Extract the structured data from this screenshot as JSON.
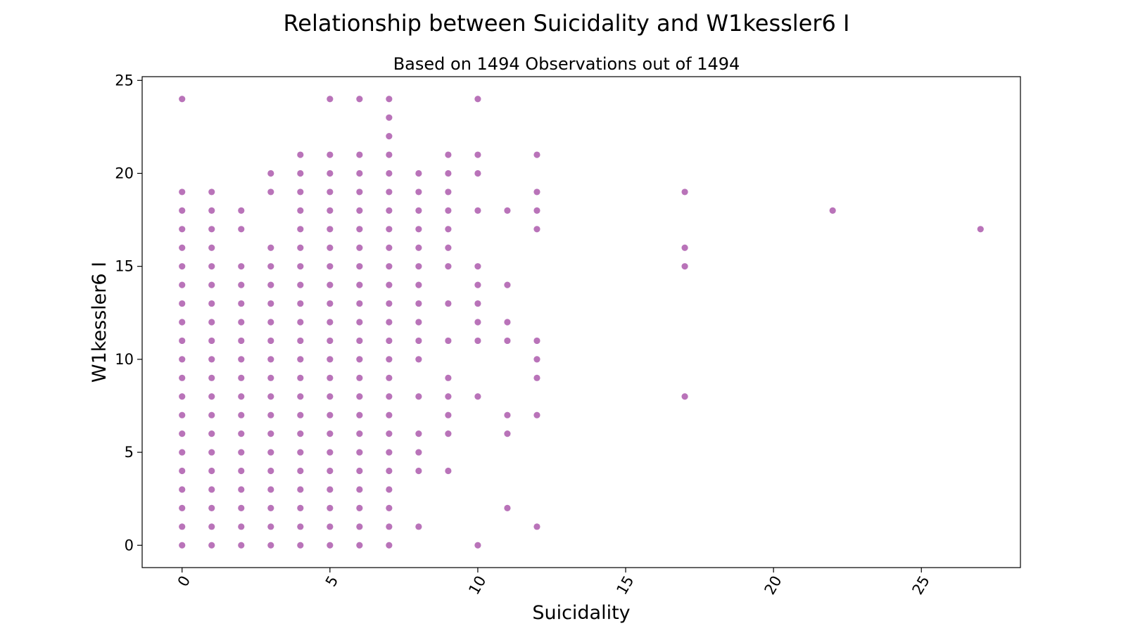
{
  "chart_data": {
    "type": "scatter",
    "title": "Relationship between Suicidality and W1kessler6 I",
    "subtitle": "Based on 1494 Observations out of 1494",
    "xlabel": "Suicidality",
    "ylabel": "W1kessler6 I",
    "xlim": [
      -1.35,
      28.35
    ],
    "ylim": [
      -1.2,
      25.2
    ],
    "xticks": [
      0,
      5,
      10,
      15,
      20,
      25
    ],
    "yticks": [
      0,
      5,
      10,
      15,
      20,
      25
    ],
    "grid": false,
    "color": "#800080",
    "points": [
      {
        "x": 0,
        "y": [
          0,
          1,
          2,
          3,
          4,
          5,
          6,
          7,
          8,
          9,
          10,
          11,
          12,
          13,
          14,
          15,
          16,
          17,
          18,
          19,
          24
        ]
      },
      {
        "x": 1,
        "y": [
          0,
          1,
          2,
          3,
          4,
          5,
          6,
          7,
          8,
          9,
          10,
          11,
          12,
          13,
          14,
          15,
          16,
          17,
          18,
          19
        ]
      },
      {
        "x": 2,
        "y": [
          0,
          1,
          2,
          3,
          4,
          5,
          6,
          7,
          8,
          9,
          10,
          11,
          12,
          13,
          14,
          15,
          17,
          18
        ]
      },
      {
        "x": 3,
        "y": [
          0,
          1,
          2,
          3,
          4,
          5,
          6,
          7,
          8,
          9,
          10,
          11,
          12,
          13,
          14,
          15,
          16,
          19,
          20
        ]
      },
      {
        "x": 4,
        "y": [
          0,
          1,
          2,
          3,
          4,
          5,
          6,
          7,
          8,
          9,
          10,
          11,
          12,
          13,
          14,
          15,
          16,
          17,
          18,
          19,
          20,
          21
        ]
      },
      {
        "x": 5,
        "y": [
          0,
          1,
          2,
          3,
          4,
          5,
          6,
          7,
          8,
          9,
          10,
          11,
          12,
          13,
          14,
          15,
          16,
          17,
          18,
          19,
          20,
          21,
          24
        ]
      },
      {
        "x": 6,
        "y": [
          0,
          1,
          2,
          3,
          4,
          5,
          6,
          7,
          8,
          9,
          10,
          11,
          12,
          13,
          14,
          15,
          16,
          17,
          18,
          19,
          20,
          21,
          24
        ]
      },
      {
        "x": 7,
        "y": [
          0,
          1,
          2,
          3,
          4,
          5,
          6,
          7,
          8,
          9,
          10,
          11,
          12,
          13,
          14,
          15,
          16,
          17,
          18,
          19,
          20,
          21,
          22,
          23,
          24
        ]
      },
      {
        "x": 8,
        "y": [
          1,
          4,
          5,
          6,
          8,
          10,
          11,
          12,
          13,
          14,
          15,
          16,
          17,
          18,
          19,
          20
        ]
      },
      {
        "x": 9,
        "y": [
          4,
          6,
          7,
          8,
          9,
          11,
          13,
          15,
          16,
          17,
          18,
          19,
          20,
          21
        ]
      },
      {
        "x": 10,
        "y": [
          0,
          8,
          11,
          12,
          13,
          14,
          15,
          18,
          20,
          21,
          24
        ]
      },
      {
        "x": 11,
        "y": [
          2,
          6,
          7,
          11,
          12,
          14,
          18
        ]
      },
      {
        "x": 12,
        "y": [
          1,
          7,
          9,
          10,
          11,
          17,
          18,
          19,
          21
        ]
      },
      {
        "x": 17,
        "y": [
          8,
          15,
          16,
          19
        ]
      },
      {
        "x": 22,
        "y": [
          18
        ]
      },
      {
        "x": 27,
        "y": [
          17
        ]
      }
    ]
  }
}
